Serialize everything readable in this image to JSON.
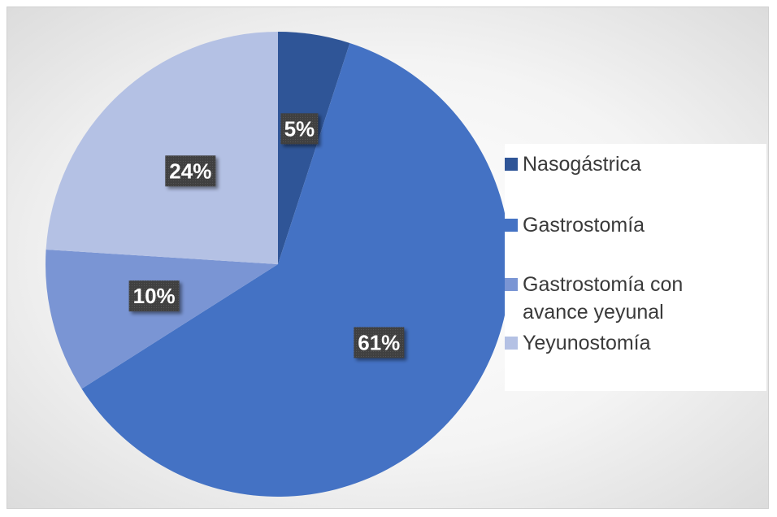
{
  "chart_data": {
    "type": "pie",
    "title": "",
    "categories": [
      "Nasogástrica",
      "Gastrostomía",
      "Gastrostomía con avance yeyunal",
      "Yeyunostomía"
    ],
    "values": [
      5,
      61,
      10,
      24
    ],
    "data_labels": [
      "5%",
      "61%",
      "10%",
      "24%"
    ],
    "colors": [
      "#2f5597",
      "#4472c4",
      "#7a95d4",
      "#b4c1e4"
    ],
    "legend_position": "right",
    "legend": [
      {
        "lines": [
          "Nasogástrica"
        ]
      },
      {
        "lines": [
          "Gastrostomía"
        ]
      },
      {
        "lines": [
          "Gastrostomía con",
          "avance yeyunal"
        ]
      },
      {
        "lines": [
          "Yeyunostomía"
        ]
      }
    ]
  }
}
